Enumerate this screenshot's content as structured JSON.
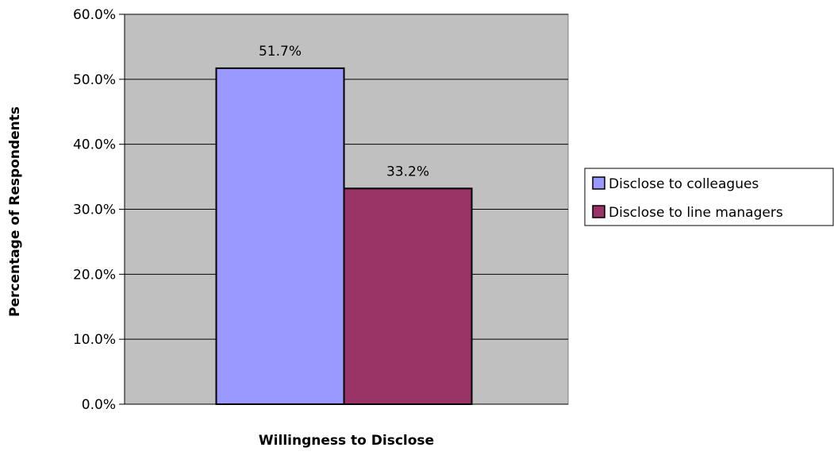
{
  "chart_data": {
    "type": "bar",
    "categories": [
      ""
    ],
    "series": [
      {
        "name": "Disclose to colleagues",
        "values": [
          51.7
        ],
        "color": "#9999FF"
      },
      {
        "name": "Disclose to line managers",
        "values": [
          33.2
        ],
        "color": "#993366"
      }
    ],
    "data_labels": [
      "51.7%",
      "33.2%"
    ],
    "title": "",
    "xlabel": "Willingness to Disclose",
    "ylabel": "Percentage of Respondents",
    "ylim": [
      0,
      60
    ],
    "yticks": [
      0,
      10,
      20,
      30,
      40,
      50,
      60
    ],
    "ytick_labels": [
      "0.0%",
      "10.0%",
      "20.0%",
      "30.0%",
      "40.0%",
      "50.0%",
      "60.0%"
    ],
    "grid": true,
    "legend_position": "right",
    "plot_background": "#C0C0C0"
  }
}
